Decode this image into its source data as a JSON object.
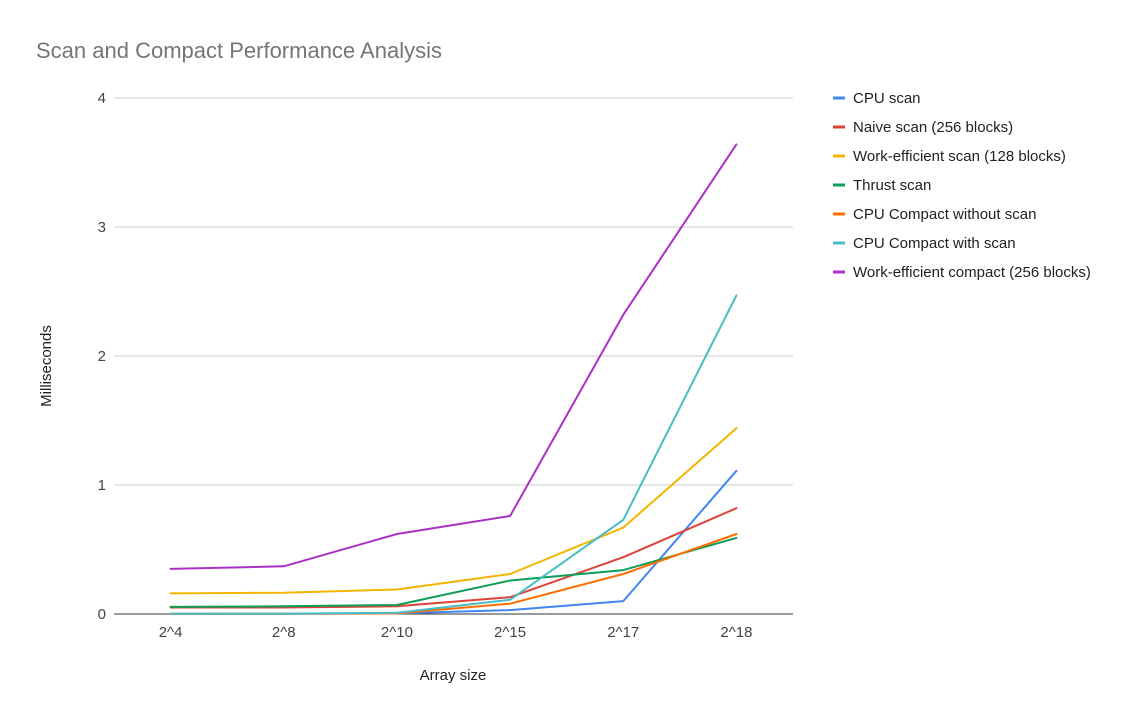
{
  "chart_data": {
    "type": "line",
    "title": "Scan and Compact Performance Analysis",
    "xlabel": "Array size",
    "ylabel": "Milliseconds",
    "categories": [
      "2^4",
      "2^8",
      "2^10",
      "2^15",
      "2^17",
      "2^18"
    ],
    "ylim": [
      0,
      4
    ],
    "yticks": [
      0,
      1,
      2,
      3,
      4
    ],
    "grid": true,
    "legend_position": "right",
    "series": [
      {
        "name": "CPU scan",
        "color": "#4285f4",
        "values": [
          0.001,
          0.002,
          0.005,
          0.03,
          0.1,
          1.11
        ]
      },
      {
        "name": "Naive scan (256 blocks)",
        "color": "#db4437",
        "values": [
          0.05,
          0.05,
          0.06,
          0.13,
          0.44,
          0.82
        ]
      },
      {
        "name": "Work-efficient scan (128 blocks)",
        "color": "#f4b400",
        "values": [
          0.16,
          0.165,
          0.19,
          0.31,
          0.67,
          1.44
        ]
      },
      {
        "name": "Thrust scan",
        "color": "#0f9d58",
        "values": [
          0.055,
          0.06,
          0.07,
          0.26,
          0.34,
          0.59
        ]
      },
      {
        "name": "CPU Compact without scan",
        "color": "#ff6d00",
        "values": [
          0.001,
          0.002,
          0.005,
          0.08,
          0.31,
          0.62
        ]
      },
      {
        "name": "CPU Compact with scan",
        "color": "#46bdc6",
        "values": [
          0.002,
          0.003,
          0.01,
          0.11,
          0.73,
          2.47
        ]
      },
      {
        "name": "Work-efficient compact (256 blocks)",
        "color": "#ab30c4",
        "values": [
          0.35,
          0.37,
          0.62,
          0.76,
          2.32,
          3.64
        ]
      }
    ]
  }
}
